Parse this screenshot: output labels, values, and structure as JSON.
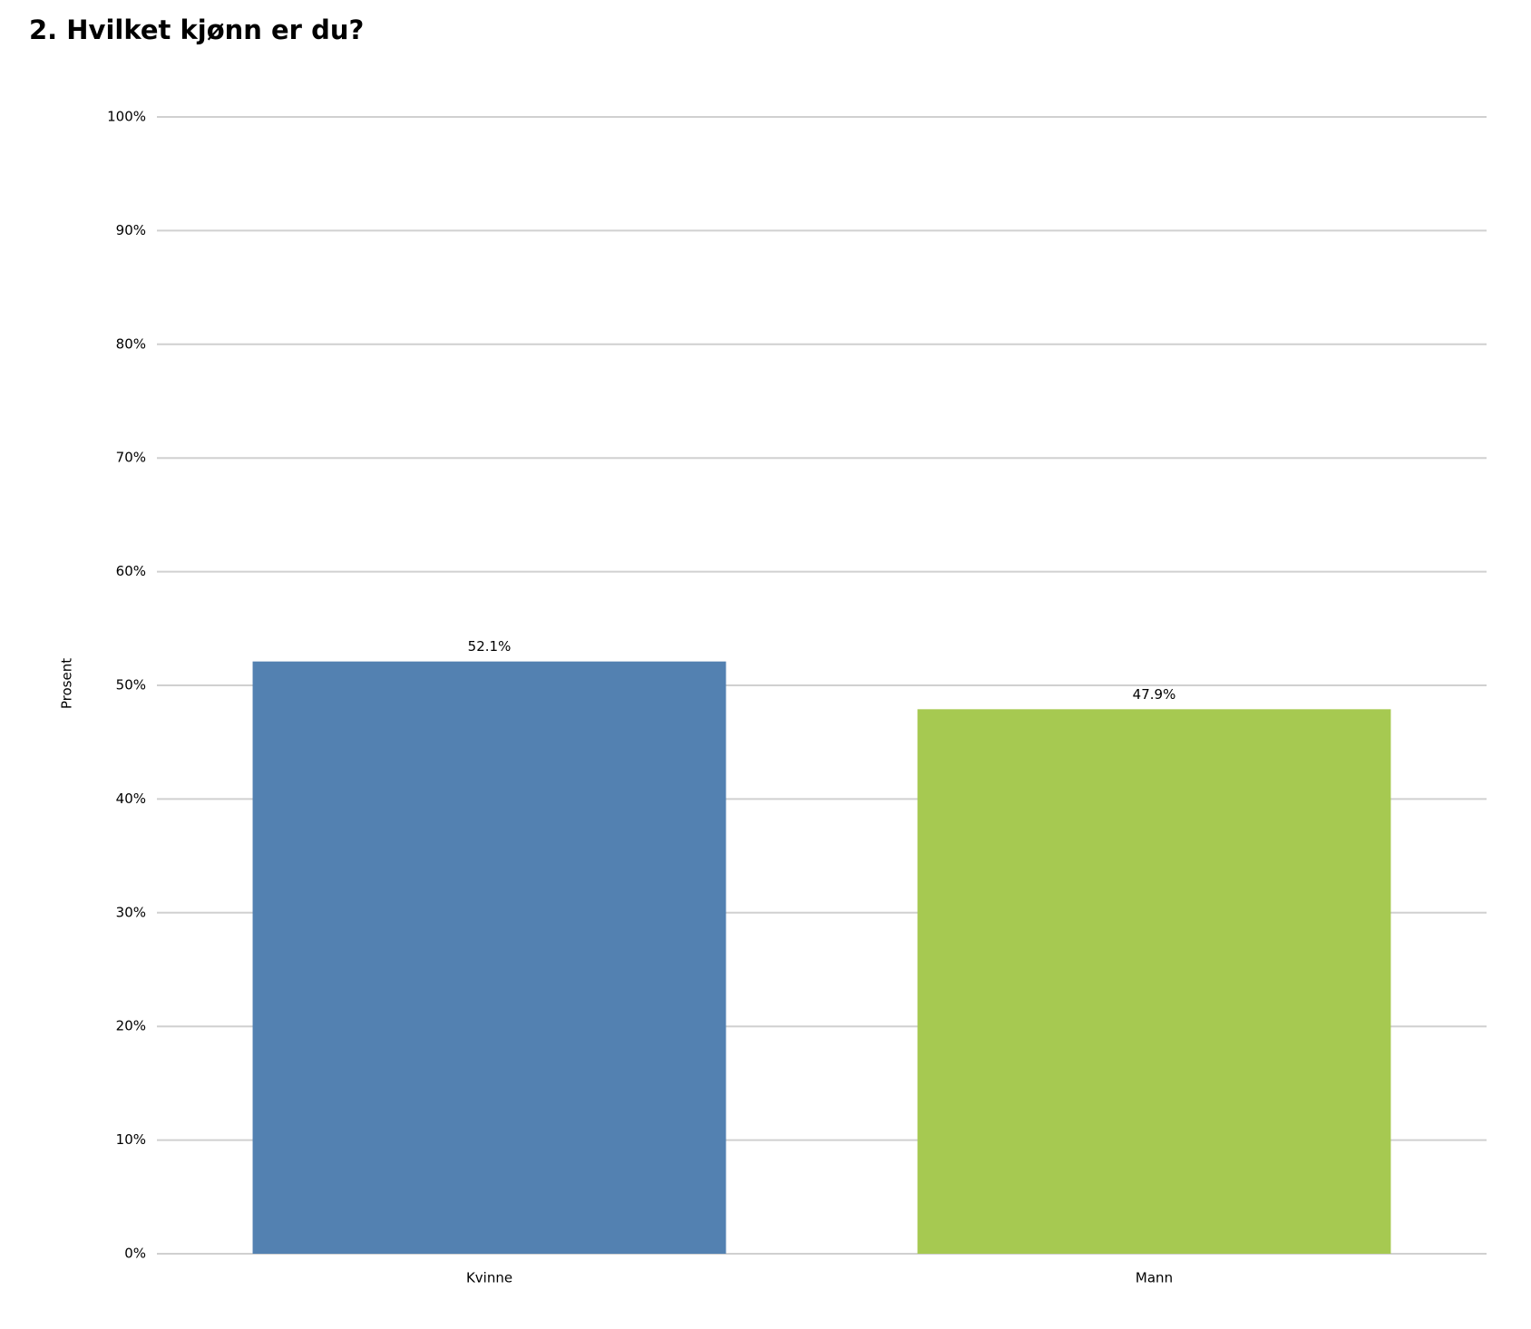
{
  "chart_data": {
    "type": "bar",
    "title": "2. Hvilket kjønn er du?",
    "y_label": "Prosent",
    "categories": [
      "Kvinne",
      "Mann"
    ],
    "values": [
      52.1,
      47.9
    ],
    "value_labels": [
      "52.1%",
      "47.9%"
    ],
    "colors": [
      "#5381b1",
      "#a6c951"
    ],
    "ylim": [
      0,
      100
    ],
    "yticks": [
      {
        "value": 0,
        "label": "0%"
      },
      {
        "value": 10,
        "label": "10%"
      },
      {
        "value": 20,
        "label": "20%"
      },
      {
        "value": 30,
        "label": "30%"
      },
      {
        "value": 40,
        "label": "40%"
      },
      {
        "value": 50,
        "label": "50%"
      },
      {
        "value": 60,
        "label": "60%"
      },
      {
        "value": 70,
        "label": "70%"
      },
      {
        "value": 80,
        "label": "80%"
      },
      {
        "value": 90,
        "label": "90%"
      },
      {
        "value": 100,
        "label": "100%"
      }
    ],
    "grid": true
  }
}
